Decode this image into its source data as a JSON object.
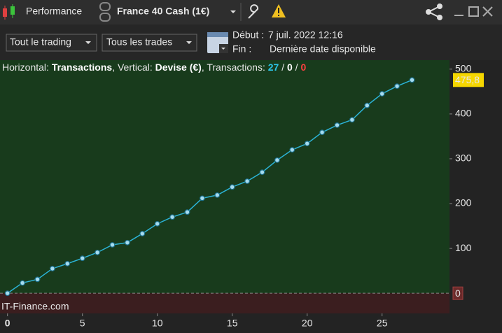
{
  "toolbar": {
    "title": "Performance",
    "instrument": "France 40 Cash (1€)"
  },
  "filters": {
    "trading": "Tout le trading",
    "trades": "Tous les trades",
    "start_label": "Début :",
    "start_value": "7 juil. 2022 12:16",
    "end_label": "Fin :",
    "end_value": "Dernière date disponible"
  },
  "chart_data": {
    "type": "line",
    "header": [
      "Horizontal: ",
      "Transactions",
      ", Vertical: ",
      "Devise (€)",
      ", Transactions: ",
      "27",
      " / ",
      "0",
      " / ",
      "0"
    ],
    "watermark": "IT-Finance.com",
    "x": [
      0,
      1,
      2,
      3,
      4,
      5,
      6,
      7,
      8,
      9,
      10,
      11,
      12,
      13,
      14,
      15,
      16,
      17,
      18,
      19,
      20,
      21,
      22,
      23,
      24,
      25,
      26,
      27
    ],
    "values": [
      0,
      23,
      31,
      55,
      66,
      78,
      91,
      108,
      113,
      133,
      155,
      170,
      181,
      212,
      219,
      237,
      250,
      270,
      297,
      320,
      334,
      359,
      375,
      387,
      419,
      445,
      462,
      475.8
    ],
    "value_labels": [
      null,
      null,
      null,
      null,
      null,
      null,
      null,
      null,
      null,
      null,
      null,
      null,
      null,
      null,
      null,
      null,
      null,
      null,
      null,
      null,
      null,
      null,
      null,
      null,
      null,
      null,
      null,
      "475,8"
    ],
    "color": "#2bb3d6",
    "xlim": [
      -0.5,
      29.5
    ],
    "xticks": [
      0,
      5,
      10,
      15,
      20,
      25
    ],
    "ylim": [
      -45,
      520
    ],
    "yticks": [
      0,
      100,
      200,
      300,
      400,
      500
    ]
  }
}
